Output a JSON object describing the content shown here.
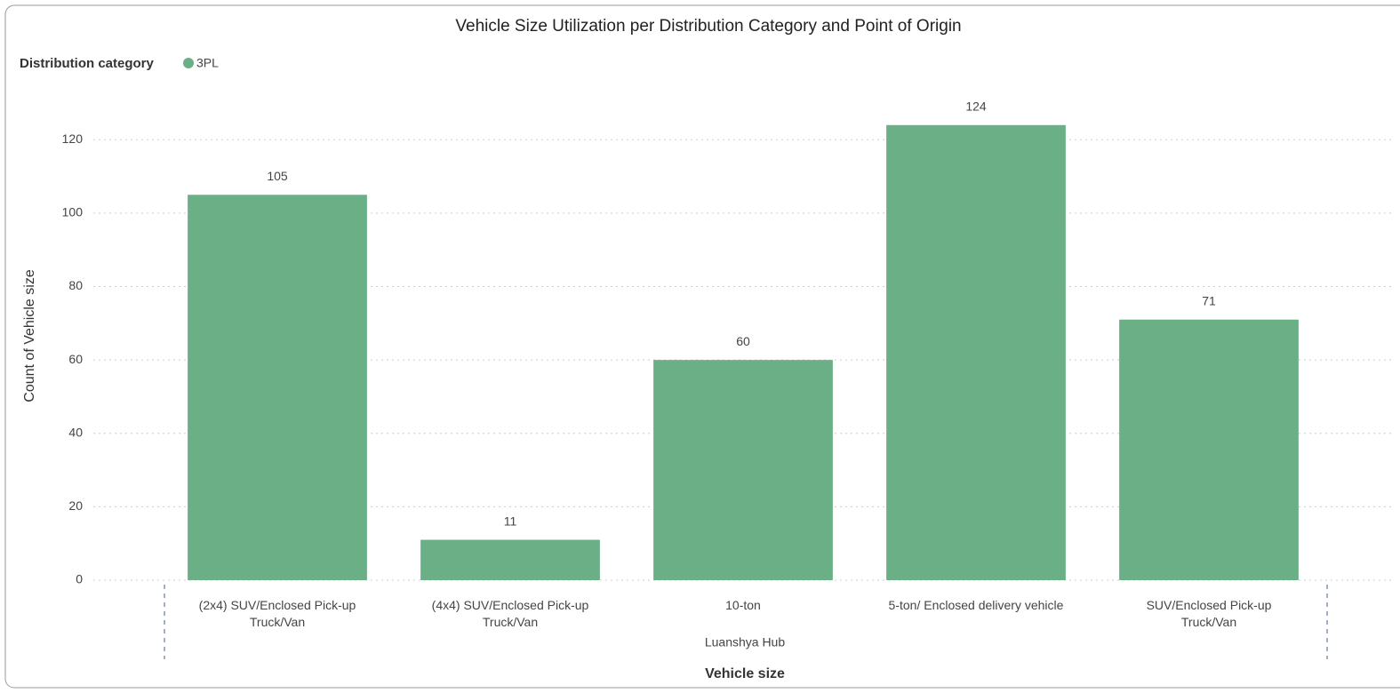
{
  "chart_data": {
    "type": "bar",
    "title": "Vehicle Size Utilization per Distribution Category and Point of Origin",
    "legend_title": "Distribution category",
    "x_label": "Vehicle size",
    "y_label": "Count of Vehicle size",
    "x_group": "Luanshya Hub",
    "categories": [
      "(2x4) SUV/Enclosed Pick-up Truck/Van",
      "(4x4) SUV/Enclosed Pick-up Truck/Van",
      "10-ton",
      "5-ton/ Enclosed delivery vehicle",
      "SUV/Enclosed Pick-up Truck/Van"
    ],
    "series": [
      {
        "name": "3PL",
        "color": "#6baf86",
        "values": [
          105,
          11,
          60,
          124,
          71
        ]
      }
    ],
    "ylim": [
      0,
      130
    ],
    "yticks": [
      0,
      20,
      40,
      60,
      80,
      100,
      120
    ],
    "grid": true
  }
}
